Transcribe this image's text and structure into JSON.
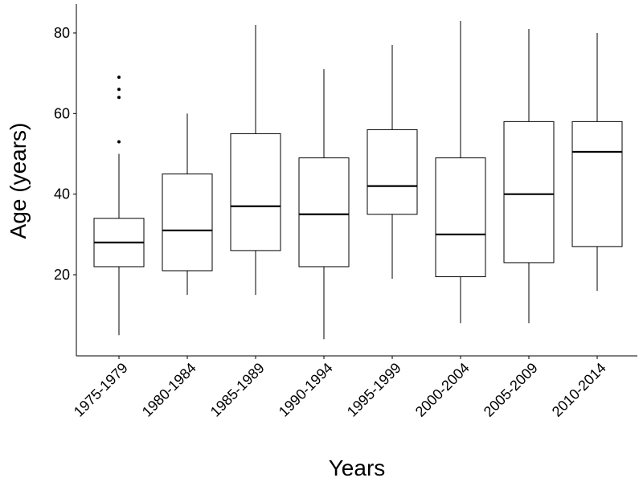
{
  "chart_data": {
    "type": "box",
    "title": "",
    "xlabel": "Years",
    "ylabel": "Age (years)",
    "ylim": [
      0,
      87
    ],
    "yticks": [
      20,
      40,
      60,
      80
    ],
    "grid": false,
    "categories": [
      "1975-1979",
      "1980-1984",
      "1985-1989",
      "1990-1994",
      "1995-1999",
      "2000-2004",
      "2005-2009",
      "2010-2014"
    ],
    "boxes": [
      {
        "category": "1975-1979",
        "min": 5,
        "q1": 22,
        "median": 28,
        "q3": 34,
        "max": 50,
        "outliers": [
          53,
          64,
          66,
          69
        ]
      },
      {
        "category": "1980-1984",
        "min": 15,
        "q1": 21,
        "median": 31,
        "q3": 45,
        "max": 60,
        "outliers": []
      },
      {
        "category": "1985-1989",
        "min": 15,
        "q1": 26,
        "median": 37,
        "q3": 55,
        "max": 82,
        "outliers": []
      },
      {
        "category": "1990-1994",
        "min": 4,
        "q1": 22,
        "median": 35,
        "q3": 49,
        "max": 71,
        "outliers": []
      },
      {
        "category": "1995-1999",
        "min": 19,
        "q1": 35,
        "median": 42,
        "q3": 56,
        "max": 77,
        "outliers": []
      },
      {
        "category": "2000-2004",
        "min": 8,
        "q1": 19.5,
        "median": 30,
        "q3": 49,
        "max": 83,
        "outliers": []
      },
      {
        "category": "2005-2009",
        "min": 8,
        "q1": 23,
        "median": 40,
        "q3": 58,
        "max": 81,
        "outliers": []
      },
      {
        "category": "2010-2014",
        "min": 16,
        "q1": 27,
        "median": 50.5,
        "q3": 58,
        "max": 80,
        "outliers": []
      }
    ],
    "colors": {
      "stroke": "#000000",
      "fill": "#ffffff"
    }
  }
}
